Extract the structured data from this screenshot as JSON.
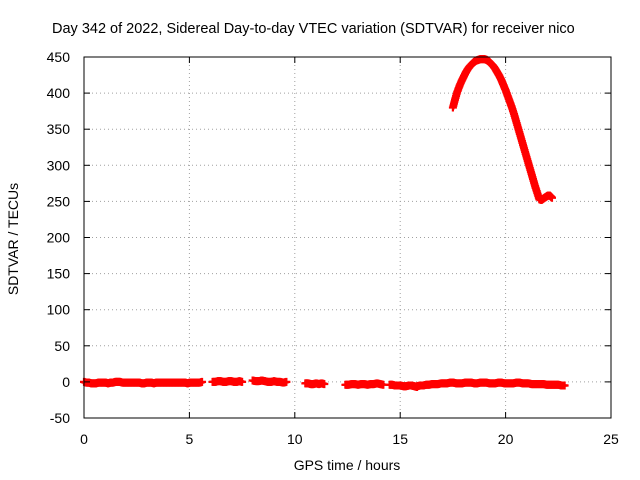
{
  "chart_data": {
    "type": "scatter",
    "title": "Day 342 of 2022, Sidereal Day-to-day VTEC variation (SDTVAR) for receiver nico",
    "xlabel": "GPS time / hours",
    "ylabel": "SDTVAR / TECUs",
    "xlim": [
      0,
      25
    ],
    "ylim": [
      -50,
      450
    ],
    "xticks": [
      "0",
      "5",
      "10",
      "15",
      "20",
      "25"
    ],
    "xtick_values": [
      0,
      5,
      10,
      15,
      20,
      25
    ],
    "yticks": [
      "-50",
      "0",
      "50",
      "100",
      "150",
      "200",
      "250",
      "300",
      "350",
      "400",
      "450"
    ],
    "ytick_values": [
      -50,
      0,
      50,
      100,
      150,
      200,
      250,
      300,
      350,
      400,
      450
    ],
    "grid": true,
    "marker": "plus",
    "color": "#ff0000",
    "series": [
      {
        "name": "near-zero baseline",
        "segments": [
          {
            "x_start": 0.0,
            "x_end": 5.6,
            "y": [
              0,
              -1,
              -1,
              -2,
              -2,
              -2,
              -1,
              -1,
              -1,
              -1,
              -2,
              -1,
              -1,
              0,
              0,
              0,
              -1,
              -1,
              -1,
              -1,
              -1,
              -1,
              -1,
              -1,
              -2,
              -2,
              -1,
              -1,
              -1,
              -2,
              -1,
              -1,
              -1,
              -1,
              -1,
              -1,
              -1,
              -1,
              -1,
              -1,
              -1,
              -1,
              -1,
              -2,
              -1,
              -1,
              -1,
              -1,
              -1,
              0
            ]
          },
          {
            "x_start": 6.1,
            "x_end": 7.5,
            "y": [
              0,
              0,
              1,
              1,
              0,
              0,
              1,
              1,
              0,
              0,
              1,
              0
            ]
          },
          {
            "x_start": 8.0,
            "x_end": 9.6,
            "y": [
              2,
              1,
              1,
              2,
              1,
              0,
              0,
              1,
              0,
              0,
              -1,
              0
            ]
          },
          {
            "x_start": 10.5,
            "x_end": 11.4,
            "y": [
              -2,
              -2,
              -3,
              -3,
              -2,
              -3,
              -2,
              -3
            ]
          },
          {
            "x_start": 12.4,
            "x_end": 14.2,
            "y": [
              -4,
              -4,
              -3,
              -3,
              -4,
              -3,
              -3,
              -4,
              -3,
              -3,
              -2,
              -3,
              -4
            ]
          },
          {
            "x_start": 14.5,
            "x_end": 15.8,
            "y": [
              -4,
              -4,
              -5,
              -5,
              -5,
              -6,
              -6,
              -5,
              -5,
              -6,
              -7
            ]
          },
          {
            "x_start": 15.8,
            "x_end": 22.8,
            "y": [
              -6,
              -5,
              -5,
              -4,
              -4,
              -3,
              -3,
              -3,
              -2,
              -2,
              -2,
              -1,
              -1,
              -2,
              -2,
              -2,
              -1,
              -1,
              -1,
              -2,
              -2,
              -1,
              -1,
              -1,
              -2,
              -2,
              -2,
              -1,
              -1,
              -2,
              -2,
              -2,
              -2,
              -1,
              -1,
              -2,
              -2,
              -2,
              -3,
              -3,
              -3,
              -3,
              -3,
              -4,
              -4,
              -4,
              -4,
              -4,
              -5,
              -5
            ]
          }
        ]
      },
      {
        "name": "arc",
        "x": [
          17.5,
          17.6,
          17.7,
          17.8,
          17.9,
          18.0,
          18.1,
          18.2,
          18.3,
          18.4,
          18.5,
          18.6,
          18.7,
          18.8,
          18.9,
          19.0,
          19.1,
          19.2,
          19.3,
          19.4,
          19.5,
          19.6,
          19.7,
          19.8,
          19.9,
          20.0,
          20.1,
          20.2,
          20.3,
          20.4,
          20.5,
          20.6,
          20.7,
          20.8,
          20.9,
          21.0,
          21.1,
          21.2,
          21.3,
          21.4,
          21.5,
          21.6,
          21.7,
          21.8,
          21.9,
          22.0,
          22.1,
          22.2
        ],
        "y": [
          380,
          391,
          401,
          409,
          416,
          422,
          428,
          433,
          437,
          440,
          443,
          445,
          446,
          447,
          447,
          447,
          446,
          444,
          441,
          438,
          434,
          429,
          424,
          418,
          411,
          404,
          396,
          388,
          380,
          371,
          361,
          351,
          341,
          331,
          321,
          311,
          301,
          291,
          281,
          271,
          262,
          253,
          252,
          254,
          256,
          258,
          258,
          255
        ]
      }
    ]
  }
}
